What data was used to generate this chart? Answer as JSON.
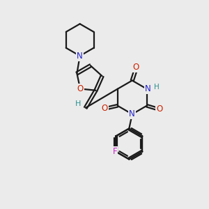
{
  "bg_color": "#ebebeb",
  "bond_color": "#1a1a1a",
  "n_color": "#2222cc",
  "o_color": "#cc2200",
  "f_color": "#cc22cc",
  "h_color": "#2a9090",
  "lw": 1.6,
  "figsize": [
    3.0,
    3.0
  ],
  "dpi": 100,
  "xlim": [
    0,
    10
  ],
  "ylim": [
    0,
    10
  ]
}
